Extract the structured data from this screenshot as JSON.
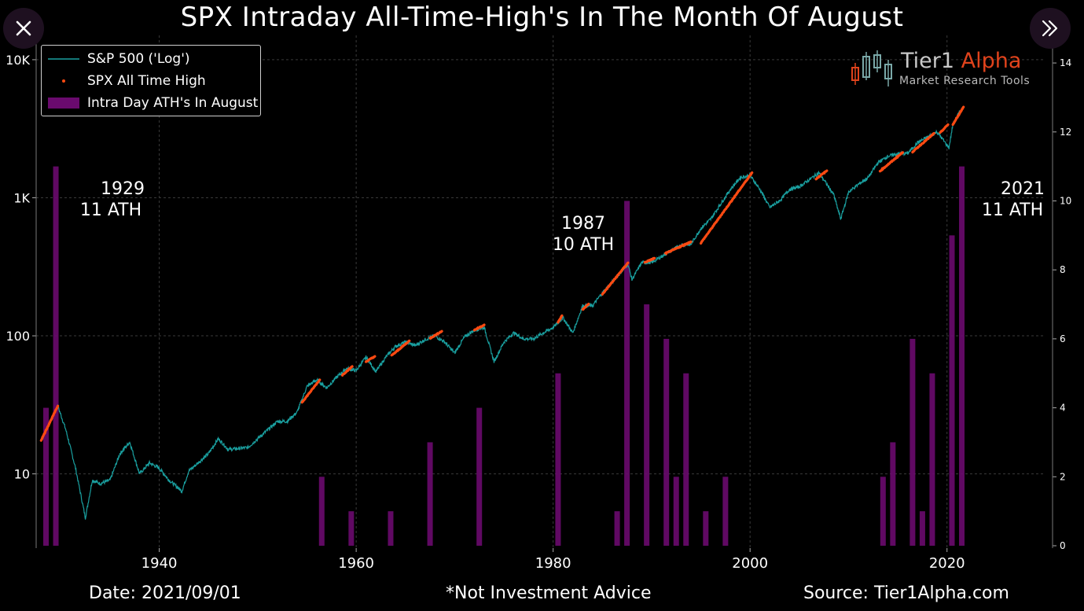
{
  "header": {
    "title": "SPX Intraday All-Time-High's In The Month Of August",
    "close_icon": "close-icon",
    "next_icon": "double-chevron-right-icon"
  },
  "legend": {
    "items": [
      {
        "label": "S&P 500 ('Log')",
        "color": "#1aa0a0"
      },
      {
        "label": "SPX All Time High",
        "color": "#ff4a12"
      },
      {
        "label": "Intra Day ATH's In August",
        "color": "#6a0a6e"
      }
    ]
  },
  "logo": {
    "name_main": "Tier1 ",
    "name_accent": "Alpha",
    "tagline": "Market  Research Tools"
  },
  "footer": {
    "date": "Date: 2021/09/01",
    "note": "*Not Investment Advice",
    "source": "Source: Tier1Alpha.com"
  },
  "annotations": [
    {
      "line1": "1929",
      "line2": "11 ATH"
    },
    {
      "line1": "1987",
      "line2": "10 ATH"
    },
    {
      "line1": "2021",
      "line2": "11 ATH"
    }
  ],
  "colors": {
    "background": "#000000",
    "line": "#1aa0a0",
    "ath": "#ff4a12",
    "bars": "#6a0a6e",
    "grid": "#3a3a3a"
  },
  "chart_data": {
    "type": "line",
    "title": "SPX Intraday All-Time-High's In The Month Of August",
    "x_range": [
      1927.5,
      2030
    ],
    "x_ticks": [
      1940,
      1960,
      1980,
      2000,
      2020
    ],
    "y_left": {
      "scale": "log",
      "range": [
        2.9,
        15000
      ],
      "ticks": [
        10,
        100,
        1000,
        10000
      ],
      "tick_labels": [
        "10",
        "100",
        "1K",
        "10K"
      ]
    },
    "y_right": {
      "scale": "linear",
      "range": [
        0,
        14.8
      ],
      "ticks": [
        0,
        2,
        4,
        6,
        8,
        10,
        12,
        14
      ]
    },
    "grid": true,
    "legend_position": "top-left",
    "series": [
      {
        "name": "S&P 500 ('Log')",
        "type": "line",
        "axis": "left",
        "points": [
          [
            1928,
            17.5
          ],
          [
            1929.7,
            31
          ],
          [
            1930.5,
            21
          ],
          [
            1931.5,
            11
          ],
          [
            1932.5,
            4.8
          ],
          [
            1933.2,
            9
          ],
          [
            1934,
            8.5
          ],
          [
            1935,
            9
          ],
          [
            1936,
            14
          ],
          [
            1937,
            17
          ],
          [
            1938,
            10
          ],
          [
            1939,
            12
          ],
          [
            1940,
            11
          ],
          [
            1941,
            9
          ],
          [
            1942.3,
            7.5
          ],
          [
            1943,
            10.5
          ],
          [
            1945,
            14
          ],
          [
            1946,
            18
          ],
          [
            1947,
            15
          ],
          [
            1949,
            15.5
          ],
          [
            1950,
            18
          ],
          [
            1952,
            24
          ],
          [
            1953,
            24
          ],
          [
            1954,
            28
          ],
          [
            1955,
            43
          ],
          [
            1956,
            48
          ],
          [
            1957,
            42
          ],
          [
            1958,
            50
          ],
          [
            1959,
            58
          ],
          [
            1960,
            56
          ],
          [
            1961,
            70
          ],
          [
            1962,
            55
          ],
          [
            1963,
            70
          ],
          [
            1964,
            84
          ],
          [
            1965,
            90
          ],
          [
            1966,
            85
          ],
          [
            1967,
            94
          ],
          [
            1968,
            100
          ],
          [
            1969,
            90
          ],
          [
            1970,
            75
          ],
          [
            1971,
            98
          ],
          [
            1972,
            110
          ],
          [
            1973,
            115
          ],
          [
            1974,
            65
          ],
          [
            1975,
            90
          ],
          [
            1976,
            105
          ],
          [
            1977,
            95
          ],
          [
            1978,
            95
          ],
          [
            1979,
            105
          ],
          [
            1980,
            115
          ],
          [
            1981,
            135
          ],
          [
            1982,
            105
          ],
          [
            1983,
            165
          ],
          [
            1984,
            165
          ],
          [
            1985,
            205
          ],
          [
            1986,
            245
          ],
          [
            1987.6,
            330
          ],
          [
            1988,
            255
          ],
          [
            1989,
            340
          ],
          [
            1990,
            340
          ],
          [
            1991,
            375
          ],
          [
            1992,
            415
          ],
          [
            1993,
            455
          ],
          [
            1994,
            460
          ],
          [
            1995,
            600
          ],
          [
            1996,
            700
          ],
          [
            1997,
            900
          ],
          [
            1998,
            1150
          ],
          [
            1999,
            1400
          ],
          [
            2000,
            1450
          ],
          [
            2001,
            1150
          ],
          [
            2002,
            850
          ],
          [
            2003,
            950
          ],
          [
            2004,
            1150
          ],
          [
            2005,
            1200
          ],
          [
            2006,
            1350
          ],
          [
            2007,
            1520
          ],
          [
            2008.5,
            1050
          ],
          [
            2009.2,
            700
          ],
          [
            2010,
            1100
          ],
          [
            2011,
            1250
          ],
          [
            2012,
            1400
          ],
          [
            2013,
            1800
          ],
          [
            2014,
            2000
          ],
          [
            2015,
            2080
          ],
          [
            2016,
            2100
          ],
          [
            2017,
            2500
          ],
          [
            2018,
            2750
          ],
          [
            2019,
            3000
          ],
          [
            2020.2,
            2300
          ],
          [
            2020.6,
            3400
          ],
          [
            2021,
            3900
          ],
          [
            2021.65,
            4500
          ]
        ]
      },
      {
        "name": "SPX All Time High",
        "type": "scatter",
        "axis": "left",
        "segments": [
          [
            [
              1928,
              17.5
            ],
            [
              1929.7,
              31
            ]
          ],
          [
            [
              1954.5,
              33
            ],
            [
              1956.3,
              48
            ]
          ],
          [
            [
              1958.6,
              52
            ],
            [
              1959.6,
              60
            ]
          ],
          [
            [
              1961,
              65
            ],
            [
              1961.9,
              71
            ]
          ],
          [
            [
              1963.6,
              72
            ],
            [
              1965.4,
              92
            ]
          ],
          [
            [
              1967.5,
              96
            ],
            [
              1968.7,
              108
            ]
          ],
          [
            [
              1972,
              110
            ],
            [
              1973,
              120
            ]
          ],
          [
            [
              1980.5,
              125
            ],
            [
              1980.9,
              140
            ]
          ],
          [
            [
              1983,
              155
            ],
            [
              1983.6,
              170
            ]
          ],
          [
            [
              1985,
              200
            ],
            [
              1987.6,
              338
            ]
          ],
          [
            [
              1989.3,
              340
            ],
            [
              1990.3,
              365
            ]
          ],
          [
            [
              1991.4,
              395
            ],
            [
              1994,
              480
            ]
          ],
          [
            [
              1995,
              470
            ],
            [
              2000.2,
              1520
            ]
          ],
          [
            [
              2006.7,
              1370
            ],
            [
              2007.8,
              1570
            ]
          ],
          [
            [
              2013.2,
              1560
            ],
            [
              2015.5,
              2130
            ]
          ],
          [
            [
              2016.5,
              2150
            ],
            [
              2018.7,
              2930
            ]
          ],
          [
            [
              2019.3,
              2950
            ],
            [
              2020.1,
              3390
            ]
          ],
          [
            [
              2020.6,
              3390
            ],
            [
              2021.67,
              4540
            ]
          ]
        ]
      },
      {
        "name": "Intra Day ATH's In August",
        "type": "bar",
        "axis": "right",
        "x": [
          1928,
          1929,
          1956,
          1959,
          1963,
          1967,
          1972,
          1980,
          1986,
          1987,
          1989,
          1991,
          1992,
          1993,
          1995,
          1997,
          2013,
          2014,
          2016,
          2017,
          2018,
          2020,
          2021
        ],
        "values": [
          4,
          11,
          2,
          1,
          1,
          3,
          4,
          5,
          1,
          10,
          7,
          6,
          2,
          5,
          1,
          2,
          2,
          3,
          6,
          1,
          5,
          9,
          11
        ]
      }
    ]
  }
}
